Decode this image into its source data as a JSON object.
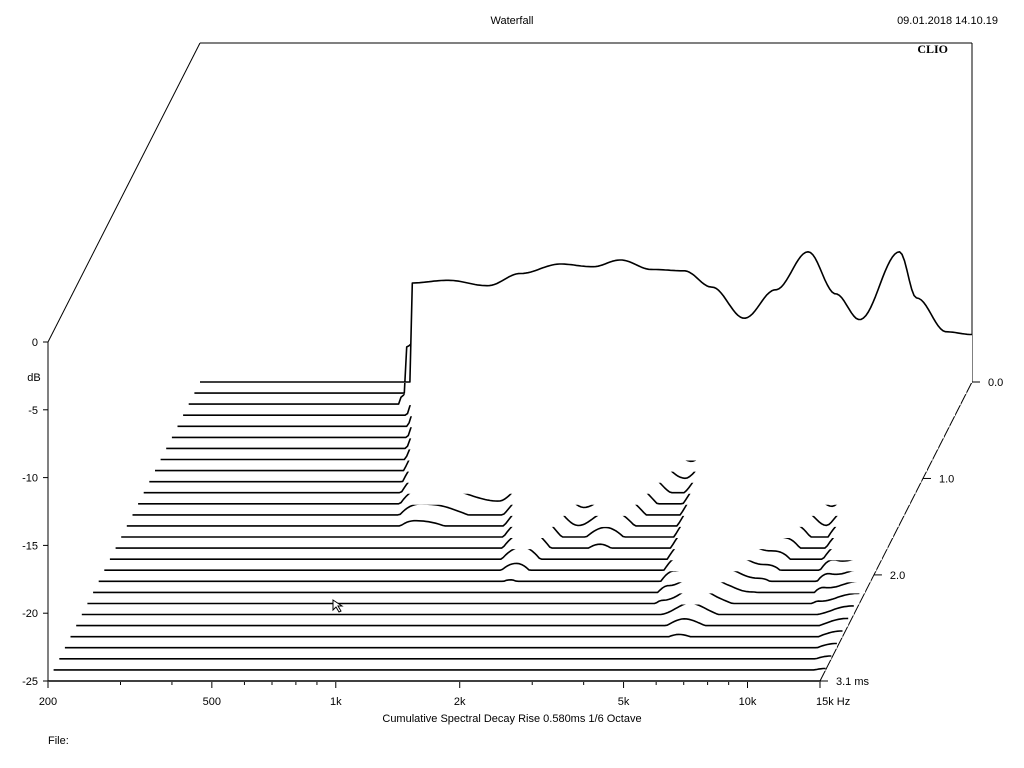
{
  "header": {
    "title": "Waterfall",
    "datetime": "09.01.2018 14.10.19",
    "brand": "CLIO"
  },
  "caption": "Cumulative Spectral Decay   Rise 0.580ms   1/6 Octave",
  "file_label": "File:",
  "chart_data": {
    "type": "waterfall",
    "title": "Waterfall",
    "subtitle": "Cumulative Spectral Decay   Rise 0.580ms   1/6 Octave",
    "ylabel": "dB",
    "xscale": "log",
    "xlim": [
      200,
      15000
    ],
    "ylim": [
      -25,
      0
    ],
    "zlim": [
      0.0,
      3.1
    ],
    "x_ticks": [
      200,
      500,
      1000,
      2000,
      5000,
      10000,
      15000
    ],
    "x_tick_labels": [
      "200",
      "500",
      "1k",
      "2k",
      "5k",
      "10k",
      "15k Hz"
    ],
    "y_ticks": [
      0,
      -5,
      -10,
      -15,
      -20,
      -25
    ],
    "y_tick_labels": [
      "0",
      "-5",
      "-10",
      "-15",
      "-20",
      "-25"
    ],
    "z_ticks": [
      0.0,
      1.0,
      2.0,
      3.1
    ],
    "z_tick_labels": [
      "0.0",
      "1.0",
      "2.0",
      "3.1 ms"
    ],
    "slice_count": 28,
    "slice_step_ms": 0.1148,
    "first_slice_response_db": {
      "freq_hz": [
        650,
        800,
        1000,
        1200,
        1500,
        1800,
        2100,
        2500,
        3000,
        3500,
        4200,
        5000,
        6000,
        7000,
        8000,
        10000,
        11000,
        13000,
        15000
      ],
      "level_db": [
        -17.7,
        -17.5,
        -17.9,
        -17.0,
        -16.3,
        -16.5,
        -16.0,
        -16.7,
        -16.8,
        -18.0,
        -20.3,
        -18.2,
        -15.4,
        -18.5,
        -20.4,
        -15.4,
        -18.8,
        -21.3,
        -21.5
      ]
    },
    "decay_ms_by_band": {
      "freq_hz": [
        650,
        1000,
        1500,
        2000,
        2500,
        3000,
        4000,
        5000,
        6000,
        8000,
        10000,
        12000,
        15000
      ],
      "decay_time_ms": [
        0.25,
        1.6,
        1.3,
        2.1,
        1.5,
        1.8,
        1.1,
        2.4,
        2.7,
        2.2,
        1.5,
        2.4,
        3.1
      ]
    },
    "floor_db": -25,
    "grid": false
  }
}
